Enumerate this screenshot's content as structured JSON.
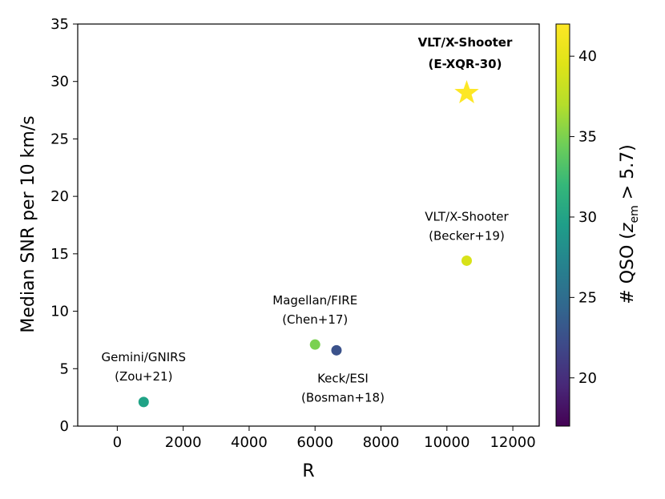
{
  "chart_data": {
    "type": "scatter",
    "xlabel": "R",
    "ylabel": "Median SNR per 10 km/s",
    "xlim": [
      -1200,
      12800
    ],
    "ylim": [
      0,
      35
    ],
    "xticks": [
      0,
      2000,
      4000,
      6000,
      8000,
      10000,
      12000
    ],
    "xtick_labels": [
      "0",
      "2000",
      "4000",
      "6000",
      "8000",
      "10000",
      "12000"
    ],
    "yticks": [
      0,
      5,
      10,
      15,
      20,
      25,
      30,
      35
    ],
    "ytick_labels": [
      "0",
      "5",
      "10",
      "15",
      "20",
      "25",
      "30",
      "35"
    ],
    "colorbar": {
      "label_prefix": "# QSO (",
      "label_var": "z",
      "label_sub": "em",
      "label_suffix": " >  5.7)",
      "range": [
        17,
        42
      ],
      "ticks": [
        20,
        25,
        30,
        35,
        40
      ],
      "tick_labels": [
        "20",
        "25",
        "30",
        "35",
        "40"
      ],
      "colormap": "viridis"
    },
    "points": [
      {
        "name": "Gemini/GNIRS",
        "ref": "(Zou+21)",
        "x": 800,
        "y": 2.1,
        "n_qso": 30,
        "color": "#20a386",
        "marker": "circle",
        "bold": false
      },
      {
        "name": "Magellan/FIRE",
        "ref": "(Chen+17)",
        "x": 6000,
        "y": 7.1,
        "n_qso": 37,
        "color": "#7ad151",
        "marker": "circle",
        "bold": false
      },
      {
        "name": "Keck/ESI",
        "ref": "(Bosman+18)",
        "x": 6650,
        "y": 6.6,
        "n_qso": 22,
        "color": "#3b528b",
        "marker": "circle",
        "bold": false
      },
      {
        "name": "VLT/X-Shooter",
        "ref": "(Becker+19)",
        "x": 10600,
        "y": 14.4,
        "n_qso": 40,
        "color": "#d8e219",
        "marker": "circle",
        "bold": false
      },
      {
        "name": "VLT/X-Shooter",
        "ref": "(E-XQR-30)",
        "x": 10600,
        "y": 29,
        "n_qso": 42,
        "color": "#fde725",
        "marker": "star",
        "bold": true
      }
    ]
  }
}
